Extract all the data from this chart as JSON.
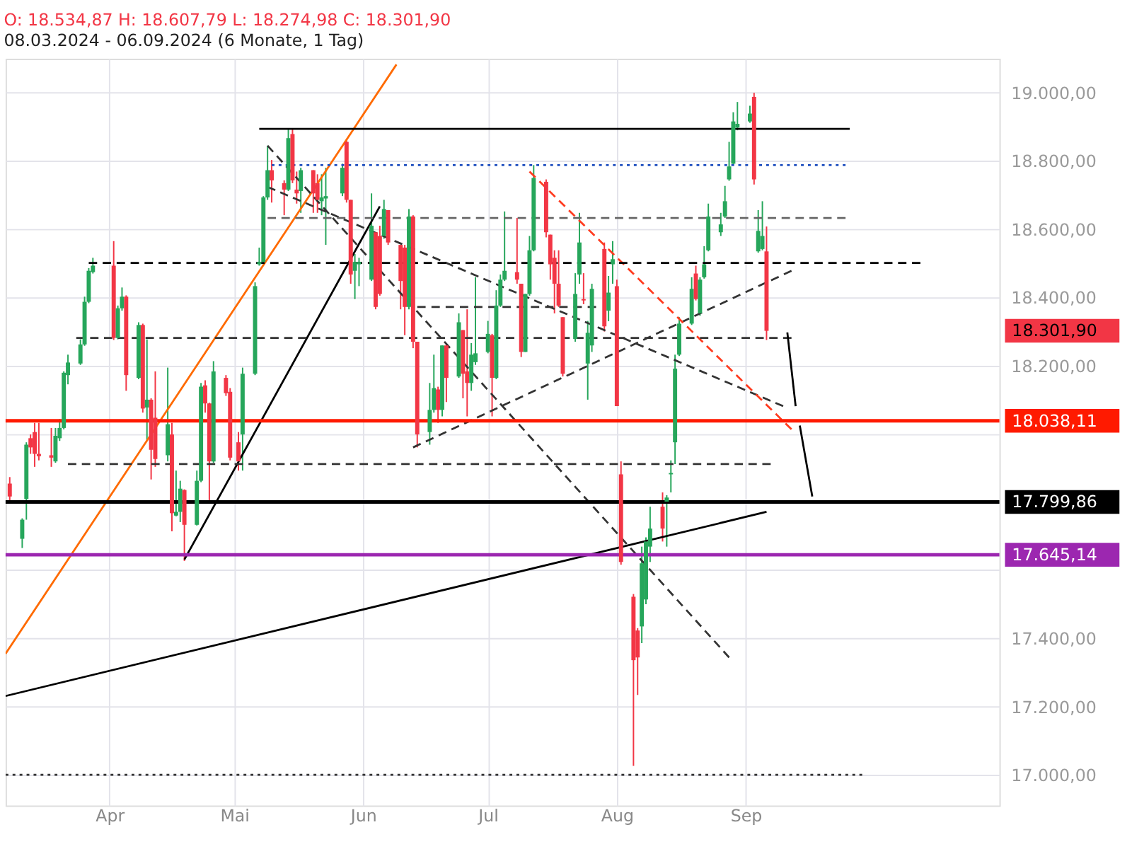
{
  "chart_data": {
    "type": "candlestick",
    "title": "O: 18.534,87  H: 18.607,79  L: 18.274,98  C: 18.301,90",
    "subtitle": "08.03.2024 - 06.09.2024  (6 Monate, 1 Tag)",
    "colors": [
      "#f23645",
      "#26a65b",
      "#26a65b",
      "#f23645",
      "#f23645",
      "#f23645",
      "#f23645",
      "#26a65b",
      "#26a65b",
      "#26a65b",
      "#26a65b",
      "#26a65b",
      "#26a65b",
      "#26a65b",
      "#26a65b",
      "#f23645",
      "#26a65b",
      "#26a65b",
      "#f23645",
      "#26a65b",
      "#f23645",
      "#26a65b",
      "#f23645",
      "#f23645",
      "#26a65b",
      "#f23645",
      "#26a65b",
      "#26a65b",
      "#f23645",
      "#26a65b",
      "#26a65b",
      "#f23645",
      "#f23645",
      "#26a65b",
      "#f23645",
      "#f23645",
      "#f23645",
      "#26a65b",
      "#26a65b",
      "#26a65b",
      "#26a65b",
      "#26a65b",
      "#f23645",
      "#f23645",
      "#26a65b",
      "#f23645",
      "#f23645",
      "#26a65b",
      "#f23645",
      "#f23645",
      "#26a65b",
      "#26a65b",
      "#26a65b",
      "#f23645",
      "#f23645",
      "#26a65b",
      "#26a65b",
      "#26a65b",
      "#f23645",
      "#f23645",
      "#26a65b",
      "#f23645",
      "#f23645",
      "#f23645",
      "#26a65b",
      "#f23645",
      "#f23645",
      "#26a65b",
      "#26a65b",
      "#f23645",
      "#26a65b",
      "#f23645",
      "#26a65b",
      "#f23645",
      "#f23645",
      "#26a65b",
      "#26a65b",
      "#26a65b",
      "#f23645",
      "#26a65b",
      "#26a65b",
      "#26a65b",
      "#f23645",
      "#f23645",
      "#26a65b",
      "#26a65b",
      "#26a65b",
      "#f23645",
      "#f23645",
      "#f23645",
      "#f23645",
      "#f23645",
      "#26a65b",
      "#26a65b",
      "#f23645",
      "#26a65b",
      "#26a65b",
      "#f23645",
      "#26a65b",
      "#26a65b",
      "#f23645",
      "#f23645",
      "#f23645",
      "#f23645",
      "#26a65b",
      "#26a65b",
      "#26a65b",
      "#f23645",
      "#26a65b",
      "#26a65b",
      "#26a65b",
      "#26a65b",
      "#26a65b",
      "#f23645",
      "#26a65b",
      "#26a65b",
      "#26a65b",
      "#26a65b",
      "#26a65b",
      "#26a65b",
      "#26a65b",
      "#26a65b",
      "#26a65b",
      "#f23645",
      "#26a65b",
      "#26a65b",
      "#f23645"
    ],
    "x": [
      "2024-03-08",
      "2024-03-11",
      "2024-03-12",
      "2024-03-13",
      "2024-03-14",
      "2024-03-15",
      "2024-03-18",
      "2024-03-19",
      "2024-03-20",
      "2024-03-21",
      "2024-03-22",
      "2024-03-25",
      "2024-03-26",
      "2024-03-27",
      "2024-03-28",
      "2024-04-02",
      "2024-04-03",
      "2024-04-04",
      "2024-04-05",
      "2024-04-08",
      "2024-04-09",
      "2024-04-10",
      "2024-04-11",
      "2024-04-12",
      "2024-04-15",
      "2024-04-16",
      "2024-04-17",
      "2024-04-18",
      "2024-04-19",
      "2024-04-22",
      "2024-04-23",
      "2024-04-24",
      "2024-04-25",
      "2024-04-26",
      "2024-04-29",
      "2024-04-30",
      "2024-05-02",
      "2024-05-03",
      "2024-05-06",
      "2024-05-07",
      "2024-05-08",
      "2024-05-09",
      "2024-05-10",
      "2024-05-13",
      "2024-05-14",
      "2024-05-15",
      "2024-05-16",
      "2024-05-17",
      "2024-05-20",
      "2024-05-21",
      "2024-05-22",
      "2024-05-23",
      "2024-05-27",
      "2024-05-28",
      "2024-05-29",
      "2024-05-30",
      "2024-05-31",
      "2024-06-03",
      "2024-06-04",
      "2024-06-05",
      "2024-06-06",
      "2024-06-07",
      "2024-06-10",
      "2024-06-11",
      "2024-06-12",
      "2024-06-13",
      "2024-06-14",
      "2024-06-17",
      "2024-06-18",
      "2024-06-19",
      "2024-06-20",
      "2024-06-21",
      "2024-06-24",
      "2024-06-25",
      "2024-06-26",
      "2024-06-27",
      "2024-06-28",
      "2024-07-01",
      "2024-07-02",
      "2024-07-03",
      "2024-07-04",
      "2024-07-05",
      "2024-07-08",
      "2024-07-09",
      "2024-07-10",
      "2024-07-11",
      "2024-07-12",
      "2024-07-15",
      "2024-07-16",
      "2024-07-17",
      "2024-07-18",
      "2024-07-19",
      "2024-07-22",
      "2024-07-23",
      "2024-07-24",
      "2024-07-25",
      "2024-07-26",
      "2024-07-29",
      "2024-07-30",
      "2024-07-31",
      "2024-08-01",
      "2024-08-02",
      "2024-08-05",
      "2024-08-06",
      "2024-08-07",
      "2024-08-08",
      "2024-08-09",
      "2024-08-12",
      "2024-08-13",
      "2024-08-14",
      "2024-08-15",
      "2024-08-16",
      "2024-08-19",
      "2024-08-20",
      "2024-08-21",
      "2024-08-22",
      "2024-08-23",
      "2024-08-26",
      "2024-08-27",
      "2024-08-28",
      "2024-08-29",
      "2024-08-30",
      "2024-09-02",
      "2024-09-03",
      "2024-09-04",
      "2024-09-05",
      "2024-09-06"
    ],
    "ohlc": [
      [
        17854,
        17873,
        17798,
        17816
      ],
      [
        17692,
        17752,
        17665,
        17748
      ],
      [
        17809,
        17975,
        17748,
        17968
      ],
      [
        17987,
        17998,
        17941,
        17960
      ],
      [
        18005,
        18032,
        17903,
        17941
      ],
      [
        17941,
        18032,
        17922,
        17934
      ],
      [
        17937,
        18017,
        17903,
        17930
      ],
      [
        17919,
        18017,
        17915,
        17994
      ],
      [
        17987,
        18043,
        17979,
        18017
      ],
      [
        18017,
        18183,
        18013,
        18179
      ],
      [
        18172,
        18232,
        18145,
        18209
      ],
      [
        18206,
        18277,
        18202,
        18262
      ],
      [
        18262,
        18402,
        18258,
        18387
      ],
      [
        18387,
        18486,
        18383,
        18478
      ],
      [
        18474,
        18516,
        18470,
        18493
      ],
      [
        18493,
        18565,
        18275,
        18281
      ],
      [
        18281,
        18376,
        18277,
        18368
      ],
      [
        18368,
        18429,
        18361,
        18402
      ],
      [
        18402,
        18406,
        18126,
        18172
      ],
      [
        18164,
        18327,
        18160,
        18319
      ],
      [
        18319,
        18323,
        18062,
        18074
      ],
      [
        18077,
        18277,
        17979,
        18100
      ],
      [
        18100,
        18104,
        17866,
        17953
      ],
      [
        18047,
        18183,
        17903,
        17926
      ],
      [
        17937,
        18194,
        17919,
        18028
      ],
      [
        17998,
        18032,
        17714,
        17767
      ],
      [
        17760,
        17892,
        17758,
        17771
      ],
      [
        17771,
        17862,
        17741,
        17839
      ],
      [
        17835,
        17837,
        17627,
        17733
      ],
      [
        17733,
        17892,
        17731,
        17862
      ],
      [
        17862,
        18149,
        17858,
        18138
      ],
      [
        18142,
        18157,
        18062,
        18089
      ],
      [
        18089,
        18091,
        17805,
        17919
      ],
      [
        17919,
        18213,
        17915,
        18183
      ],
      [
        18164,
        18172,
        18111,
        18119
      ],
      [
        18123,
        18134,
        17922,
        17930
      ],
      [
        17975,
        18005,
        17892,
        17919
      ],
      [
        17998,
        18194,
        17892,
        18176
      ],
      [
        18176,
        18444,
        18172,
        18433
      ],
      [
        18497,
        18546,
        18493,
        18504
      ],
      [
        18504,
        18697,
        18500,
        18693
      ],
      [
        18693,
        18845,
        18686,
        18773
      ],
      [
        18773,
        18803,
        18678,
        18743
      ],
      [
        18735,
        18743,
        18641,
        18716
      ],
      [
        18716,
        18894,
        18712,
        18867
      ],
      [
        18879,
        18894,
        18735,
        18743
      ],
      [
        18716,
        18769,
        18675,
        18705
      ],
      [
        18712,
        18780,
        18648,
        18773
      ],
      [
        18773,
        18773,
        18648,
        18705
      ],
      [
        18735,
        18761,
        18648,
        18686
      ],
      [
        18682,
        18761,
        18641,
        18693
      ],
      [
        18690,
        18780,
        18554,
        18697
      ],
      [
        18705,
        18792,
        18697,
        18780
      ],
      [
        18856,
        18863,
        18678,
        18686
      ],
      [
        18686,
        18686,
        18440,
        18467
      ],
      [
        18478,
        18527,
        18395,
        18504
      ],
      [
        18497,
        18516,
        18433,
        18504
      ],
      [
        18452,
        18705,
        18448,
        18610
      ],
      [
        18591,
        18591,
        18365,
        18372
      ],
      [
        18580,
        18610,
        18405,
        18410
      ],
      [
        18580,
        18686,
        18572,
        18659
      ],
      [
        18656,
        18656,
        18554,
        18561
      ],
      [
        18554,
        18554,
        18365,
        18448
      ],
      [
        18546,
        18554,
        18289,
        18372
      ],
      [
        18372,
        18659,
        18365,
        18637
      ],
      [
        18637,
        18641,
        18251,
        18270
      ],
      [
        18270,
        18270,
        17960,
        17998
      ],
      [
        18005,
        18149,
        17968,
        18070
      ],
      [
        18070,
        18232,
        18062,
        18134
      ],
      [
        18130,
        18138,
        18032,
        18070
      ],
      [
        18070,
        18259,
        18051,
        18259
      ],
      [
        18259,
        18262,
        18093,
        18164
      ],
      [
        18168,
        18353,
        18164,
        18327
      ],
      [
        18304,
        18304,
        18104,
        18176
      ],
      [
        18183,
        18365,
        18051,
        18149
      ],
      [
        18149,
        18266,
        18126,
        18232
      ],
      [
        18210,
        18459,
        18202,
        18236
      ],
      [
        18240,
        18331,
        18236,
        18293
      ],
      [
        18289,
        18293,
        18051,
        18164
      ],
      [
        18164,
        18421,
        18160,
        18376
      ],
      [
        18376,
        18467,
        18372,
        18452
      ],
      [
        18452,
        18652,
        18448,
        18478
      ],
      [
        18474,
        18633,
        18440,
        18452
      ],
      [
        18440,
        18440,
        18225,
        18240
      ],
      [
        18240,
        18410,
        18240,
        18410
      ],
      [
        18410,
        18580,
        18405,
        18538
      ],
      [
        18538,
        18788,
        18535,
        18750
      ],
      [
        18739,
        18746,
        18576,
        18591
      ],
      [
        18584,
        18584,
        18452,
        18497
      ],
      [
        18516,
        18538,
        18353,
        18440
      ],
      [
        18440,
        18538,
        18372,
        18376
      ],
      [
        18342,
        18342,
        18168,
        18176
      ],
      [
        18278,
        18471,
        18270,
        18410
      ],
      [
        18467,
        18648,
        18440,
        18561
      ],
      [
        18395,
        18471,
        18380,
        18391
      ],
      [
        18206,
        18331,
        18100,
        18296
      ],
      [
        18259,
        18440,
        18240,
        18425
      ],
      [
        18542,
        18561,
        18300,
        18315
      ],
      [
        18361,
        18463,
        18330,
        18414
      ],
      [
        18497,
        18565,
        18440,
        18512
      ],
      [
        18433,
        18452,
        18081,
        18081
      ],
      [
        17881,
        17919,
        17616,
        17624
      ],
      [
        17522,
        17530,
        17026,
        17336
      ],
      [
        17423,
        17430,
        17234,
        17344
      ],
      [
        17435,
        17669,
        17386,
        17620
      ],
      [
        17514,
        17696,
        17500,
        17684
      ],
      [
        17669,
        17786,
        17624,
        17722
      ],
      [
        17786,
        17828,
        17684,
        17722
      ],
      [
        17801,
        17820,
        17669,
        17813
      ],
      [
        17881,
        17922,
        17828,
        17885
      ],
      [
        17975,
        18232,
        17911,
        18191
      ],
      [
        18232,
        18342,
        18228,
        18323
      ],
      [
        18323,
        18459,
        18319,
        18425
      ],
      [
        18470,
        18493,
        18391,
        18395
      ],
      [
        18353,
        18459,
        18346,
        18452
      ],
      [
        18459,
        18550,
        18455,
        18497
      ],
      [
        18538,
        18675,
        18535,
        18637
      ],
      [
        18591,
        18648,
        18580,
        18614
      ],
      [
        18637,
        18727,
        18633,
        18682
      ],
      [
        18746,
        18856,
        18742,
        18784
      ],
      [
        18792,
        18943,
        18788,
        18916
      ],
      [
        18898,
        18973,
        18890,
        18909
      ],
      [
        18916,
        18962,
        18912,
        18939
      ],
      [
        18988,
        19000,
        18731,
        18746
      ],
      [
        18535,
        18656,
        18531,
        18595
      ],
      [
        18542,
        18682,
        18538,
        18580
      ],
      [
        18534.87,
        18607.79,
        18274.98,
        18301.9
      ]
    ],
    "series": [
      {
        "type": "line",
        "color": "#ff6a00",
        "line_style": "solid",
        "x": [
          "2024-03-07",
          "2024-06-09"
        ],
        "values": [
          17355,
          19083
        ]
      },
      {
        "type": "line",
        "color": "#000000",
        "line_style": "solid",
        "x": [
          "2024-04-19",
          "2024-06-05"
        ],
        "values": [
          17631,
          18667
        ]
      },
      {
        "type": "line",
        "color": "#000000",
        "line_style": "solid",
        "x": [
          "2024-03-07",
          "2024-09-06"
        ],
        "values": [
          17231,
          17771
        ]
      },
      {
        "type": "line",
        "color": "#333333",
        "line_style": "dashed",
        "x": [
          "2024-05-09",
          "2024-08-28"
        ],
        "values": [
          18845,
          17344
        ]
      },
      {
        "type": "line",
        "color": "#333333",
        "line_style": "dashed",
        "x": [
          "2024-05-09",
          "2024-09-10"
        ],
        "values": [
          18724,
          18081
        ]
      },
      {
        "type": "line",
        "color": "#333333",
        "line_style": "dashed",
        "x": [
          "2024-06-13",
          "2024-09-12"
        ],
        "values": [
          17960,
          18478
        ]
      },
      {
        "type": "line",
        "color": "#ff3b1f",
        "line_style": "dashed",
        "x": [
          "2024-07-11",
          "2024-09-12"
        ],
        "values": [
          18769,
          18013
        ]
      },
      {
        "type": "line",
        "color": "#000000",
        "line_style": "solid",
        "x": [
          "2024-05-07",
          "2024-09-26"
        ],
        "values": [
          18894,
          18894
        ]
      },
      {
        "type": "line",
        "color": "#1f4fbf",
        "line_style": "dotted",
        "x": [
          "2024-05-10",
          "2024-09-25"
        ],
        "values": [
          18788,
          18788
        ]
      },
      {
        "type": "line",
        "color": "#666666",
        "line_style": "dashed",
        "x": [
          "2024-05-09",
          "2024-09-25"
        ],
        "values": [
          18633,
          18633
        ]
      },
      {
        "type": "line",
        "color": "#000000",
        "line_style": "dashed",
        "x": [
          "2024-03-27",
          "2024-10-13"
        ],
        "values": [
          18501,
          18501
        ]
      },
      {
        "type": "line",
        "color": "#333333",
        "line_style": "dashed",
        "x": [
          "2024-03-24",
          "2024-09-12"
        ],
        "values": [
          18281,
          18281
        ]
      },
      {
        "type": "line",
        "color": "#333333",
        "line_style": "dashed",
        "x": [
          "2024-06-14",
          "2024-07-27"
        ],
        "values": [
          18372,
          18372
        ]
      },
      {
        "type": "line",
        "color": "#333333",
        "line_style": "dashed",
        "x": [
          "2024-03-22",
          "2024-09-07"
        ],
        "values": [
          17911,
          17911
        ]
      },
      {
        "type": "line",
        "color": "#333333",
        "line_style": "dotted",
        "x": [
          "2024-03-07",
          "2024-09-29"
        ],
        "values": [
          17000,
          17000
        ]
      },
      {
        "type": "line",
        "color": "#000000",
        "line_style": "solid",
        "x": [
          "2024-09-11",
          "2024-09-13"
        ],
        "values": [
          18297,
          18081
        ]
      },
      {
        "type": "line",
        "color": "#000000",
        "line_style": "solid",
        "x": [
          "2024-09-14",
          "2024-09-17"
        ],
        "values": [
          18024,
          17816
        ]
      }
    ],
    "ref_lines": [
      {
        "axis": "y",
        "value": 18038.11,
        "label": "18.038,11",
        "color": "#ff1a00"
      },
      {
        "axis": "y",
        "value": 17799.86,
        "label": "17.799,86",
        "color": "#000000"
      },
      {
        "axis": "y",
        "value": 17645.14,
        "label": "17.645,14",
        "color": "#9c27b0"
      }
    ],
    "annotations": [
      "18.301,90"
    ],
    "xlim": [
      "2024-03-07",
      "2024-11-01"
    ],
    "xticks": [
      {
        "value": "2024-04-01",
        "label": "Apr"
      },
      {
        "value": "2024-05-01",
        "label": "Mai"
      },
      {
        "value": "2024-06-01",
        "label": "Jun"
      },
      {
        "value": "2024-07-01",
        "label": "Jul"
      },
      {
        "value": "2024-08-01",
        "label": "Aug"
      },
      {
        "value": "2024-09-01",
        "label": "Sep"
      }
    ],
    "ylim": [
      16910,
      19100
    ],
    "yticks": [
      {
        "value": 17000,
        "label": "17.000,00"
      },
      {
        "value": 17200,
        "label": "17.200,00"
      },
      {
        "value": 17400,
        "label": "17.400,00"
      },
      {
        "value": 17600,
        "label": null
      },
      {
        "value": 17800,
        "label": null
      },
      {
        "value": 18000,
        "label": null
      },
      {
        "value": 18200,
        "label": "18.200,00"
      },
      {
        "value": 18400,
        "label": "18.400,00"
      },
      {
        "value": 18600,
        "label": "18.600,00"
      },
      {
        "value": 18800,
        "label": "18.800,00"
      },
      {
        "value": 19000,
        "label": "19.000,00"
      }
    ],
    "grid": true
  }
}
